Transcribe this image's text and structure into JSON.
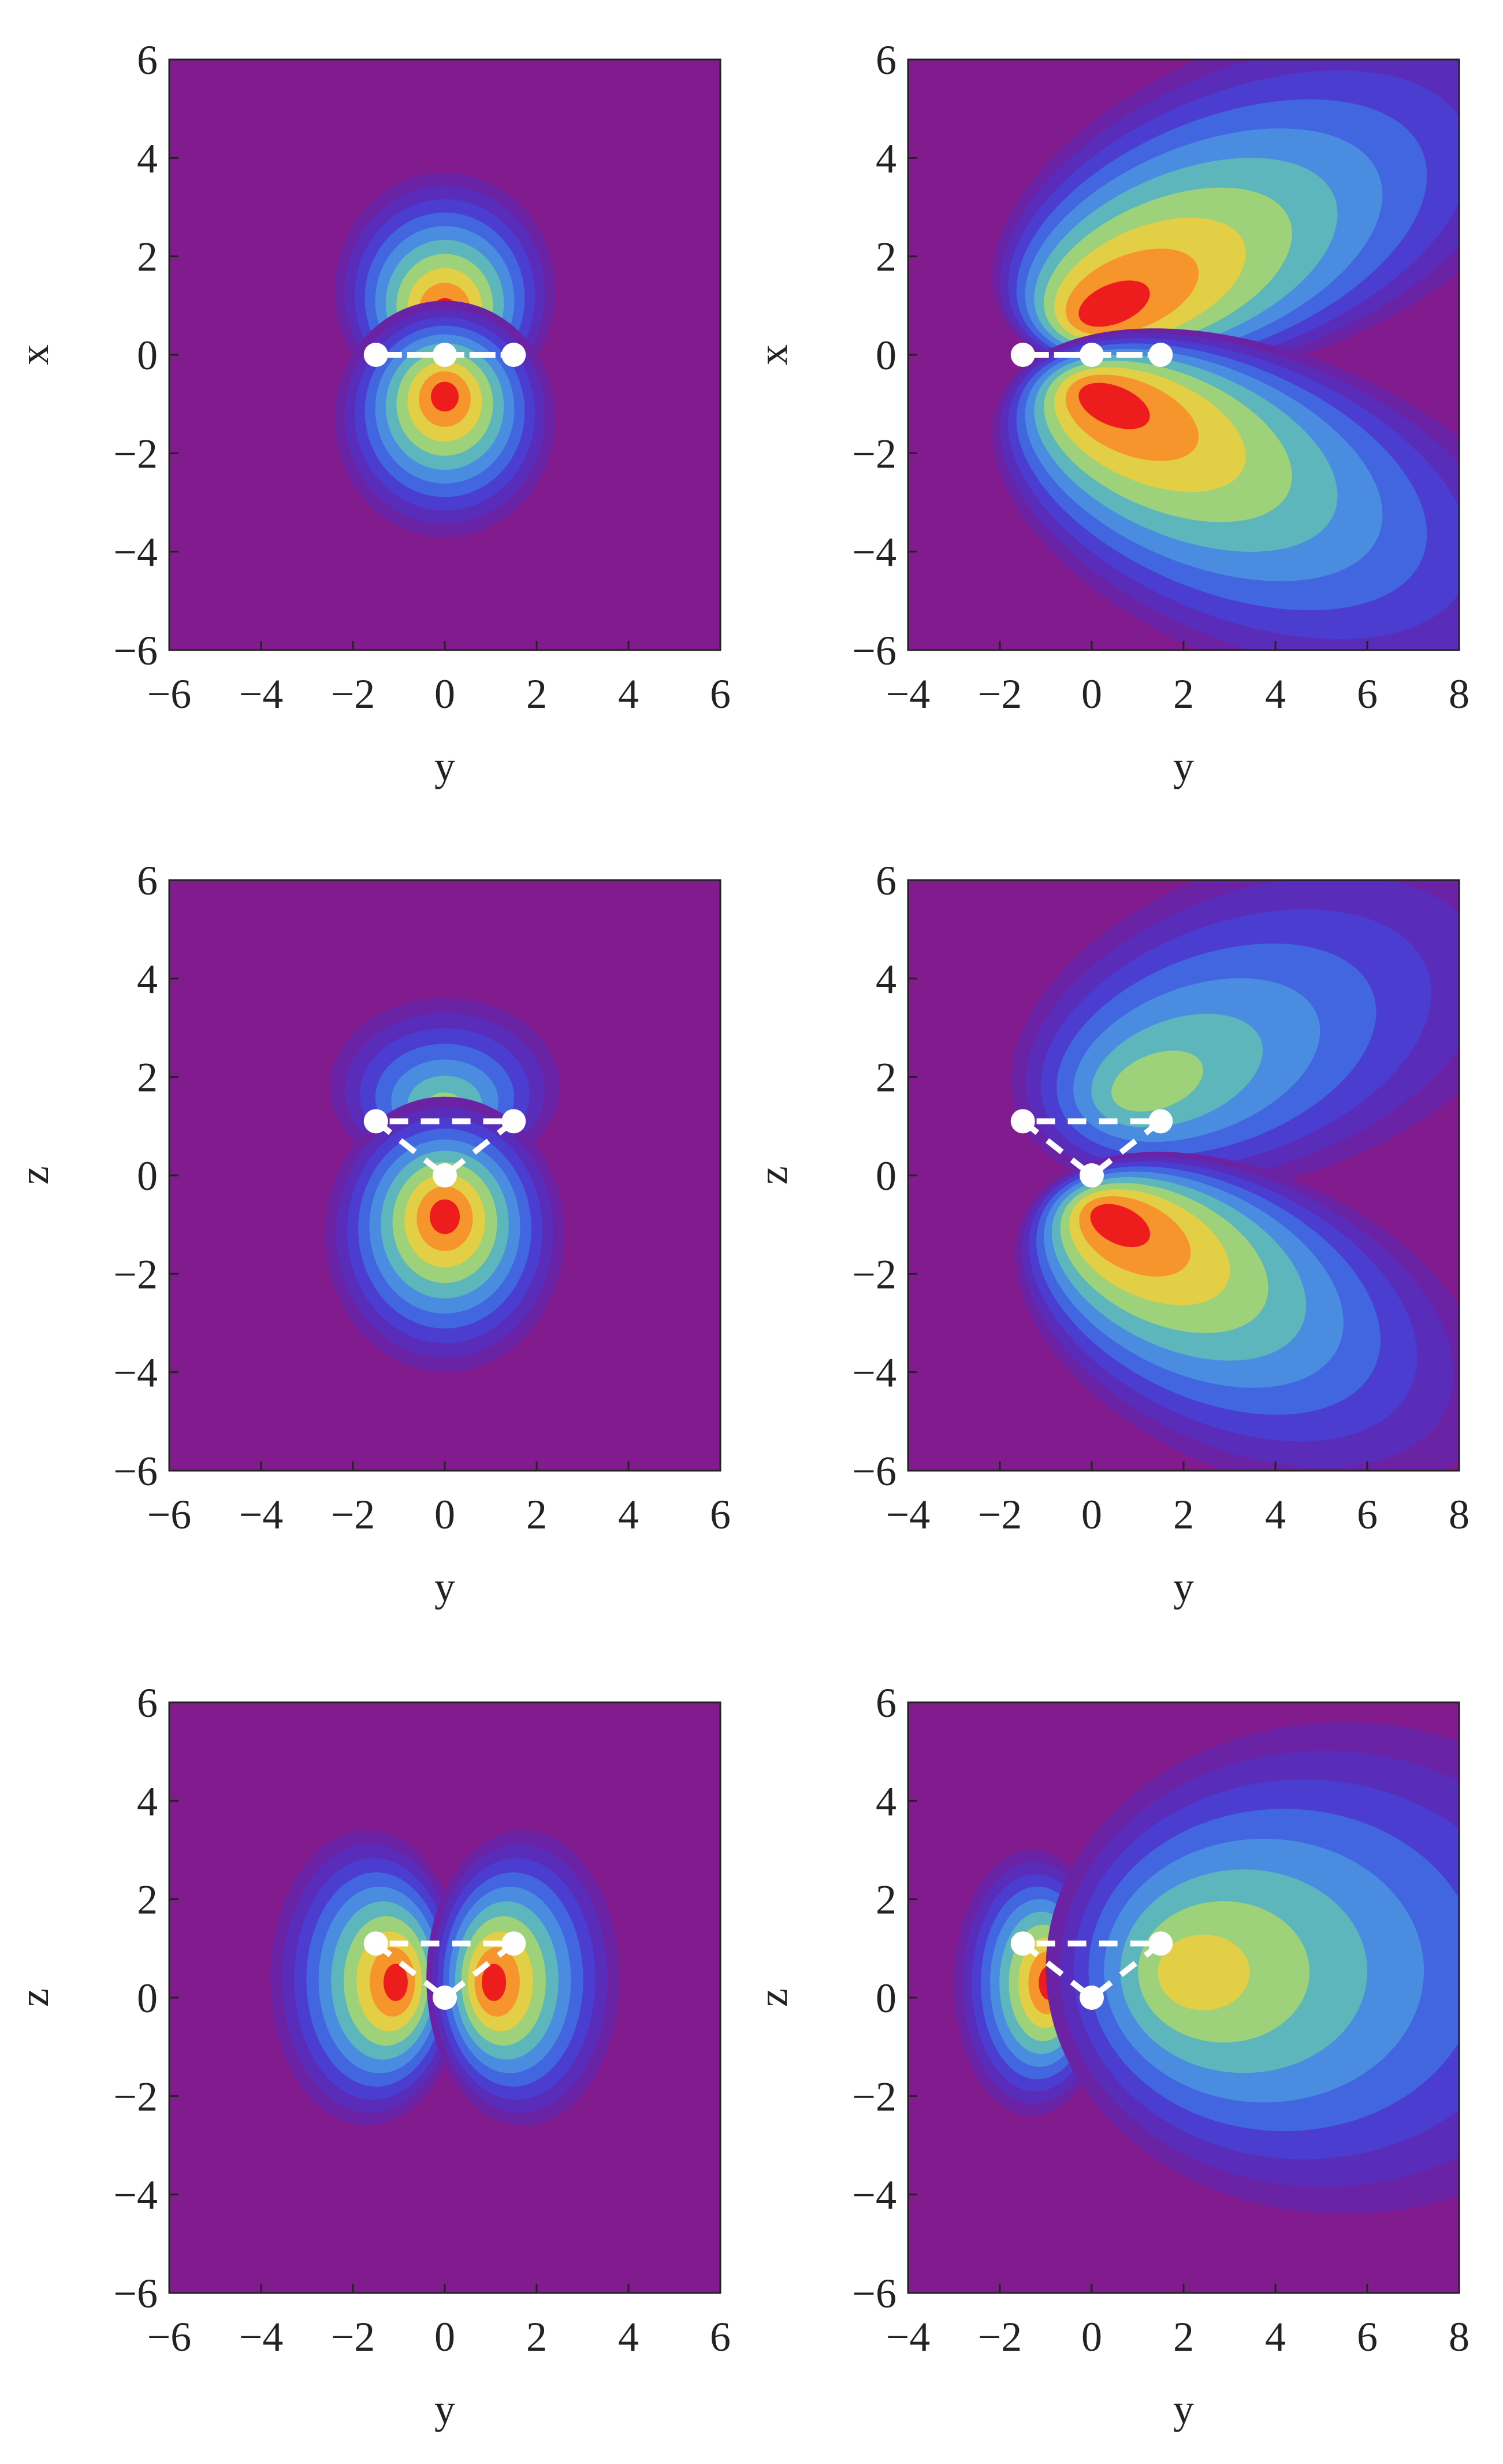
{
  "chart_data": [
    {
      "type": "contour",
      "xlabel": "y",
      "ylabel": "x",
      "xlim": [
        -6,
        6
      ],
      "ylim": [
        -6,
        6
      ],
      "xticks": [
        {
          "value": -6,
          "label": "−6"
        },
        {
          "value": -4,
          "label": "−4"
        },
        {
          "value": -2,
          "label": "−2"
        },
        0,
        2,
        4,
        6
      ],
      "yticks": [
        {
          "value": -6,
          "label": "−6"
        },
        {
          "value": -4,
          "label": "−4"
        },
        {
          "value": -2,
          "label": "−2"
        },
        0,
        2,
        4,
        6
      ],
      "x": [
        -1.5,
        0,
        1.5
      ],
      "y": [
        0,
        0,
        0
      ],
      "marker_color": "#ffffff"
    },
    {
      "type": "contour",
      "xlabel": "y",
      "ylabel": "x",
      "xlim": [
        -4,
        8
      ],
      "ylim": [
        -6,
        6
      ],
      "xticks": [
        {
          "value": -4,
          "label": "−4"
        },
        {
          "value": -2,
          "label": "−2"
        },
        0,
        2,
        4,
        6,
        8
      ],
      "yticks": [
        {
          "value": -6,
          "label": "−6"
        },
        {
          "value": -4,
          "label": "−4"
        },
        {
          "value": -2,
          "label": "−2"
        },
        0,
        2,
        4,
        6
      ],
      "x": [
        -1.5,
        0,
        1.5
      ],
      "y": [
        0,
        0,
        0
      ],
      "marker_color": "#ffffff"
    },
    {
      "type": "contour",
      "xlabel": "y",
      "ylabel": "z",
      "xlim": [
        -6,
        6
      ],
      "ylim": [
        -6,
        6
      ],
      "xticks": [
        {
          "value": -6,
          "label": "−6"
        },
        {
          "value": -4,
          "label": "−4"
        },
        {
          "value": -2,
          "label": "−2"
        },
        0,
        2,
        4,
        6
      ],
      "yticks": [
        {
          "value": -6,
          "label": "−6"
        },
        {
          "value": -4,
          "label": "−4"
        },
        {
          "value": -2,
          "label": "−2"
        },
        0,
        2,
        4,
        6
      ],
      "x": [
        -1.5,
        0,
        1.5
      ],
      "y": [
        1.1,
        0,
        1.1
      ],
      "marker_color": "#ffffff"
    },
    {
      "type": "contour",
      "xlabel": "y",
      "ylabel": "z",
      "xlim": [
        -4,
        8
      ],
      "ylim": [
        -6,
        6
      ],
      "xticks": [
        {
          "value": -4,
          "label": "−4"
        },
        {
          "value": -2,
          "label": "−2"
        },
        0,
        2,
        4,
        6,
        8
      ],
      "yticks": [
        {
          "value": -6,
          "label": "−6"
        },
        {
          "value": -4,
          "label": "−4"
        },
        {
          "value": -2,
          "label": "−2"
        },
        0,
        2,
        4,
        6
      ],
      "x": [
        -1.5,
        0,
        1.5
      ],
      "y": [
        1.1,
        0,
        1.1
      ],
      "marker_color": "#ffffff"
    },
    {
      "type": "contour",
      "xlabel": "y",
      "ylabel": "z",
      "xlim": [
        -6,
        6
      ],
      "ylim": [
        -6,
        6
      ],
      "xticks": [
        {
          "value": -6,
          "label": "−6"
        },
        {
          "value": -4,
          "label": "−4"
        },
        {
          "value": -2,
          "label": "−2"
        },
        0,
        2,
        4,
        6
      ],
      "yticks": [
        {
          "value": -6,
          "label": "−6"
        },
        {
          "value": -4,
          "label": "−4"
        },
        {
          "value": -2,
          "label": "−2"
        },
        0,
        2,
        4,
        6
      ],
      "x": [
        -1.5,
        0,
        1.5
      ],
      "y": [
        1.1,
        0,
        1.1
      ],
      "marker_color": "#ffffff"
    },
    {
      "type": "contour",
      "xlabel": "y",
      "ylabel": "z",
      "xlim": [
        -4,
        8
      ],
      "ylim": [
        -6,
        6
      ],
      "xticks": [
        {
          "value": -4,
          "label": "−4"
        },
        {
          "value": -2,
          "label": "−2"
        },
        0,
        2,
        4,
        6,
        8
      ],
      "yticks": [
        {
          "value": -6,
          "label": "−6"
        },
        {
          "value": -4,
          "label": "−4"
        },
        {
          "value": -2,
          "label": "−2"
        },
        0,
        2,
        4,
        6
      ],
      "x": [
        -1.5,
        0,
        1.5
      ],
      "y": [
        1.1,
        0,
        1.1
      ],
      "marker_color": "#ffffff"
    }
  ]
}
